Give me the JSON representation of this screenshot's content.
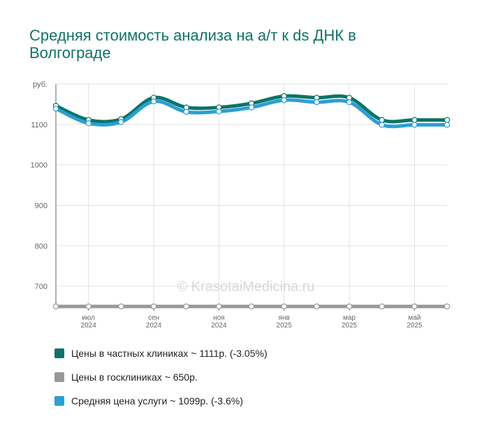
{
  "chart_data": {
    "type": "line",
    "title": "Средняя стоимость анализа на а/т к ds ДНК в Волгограде",
    "ylabel": "руб.",
    "ylim": [
      650,
      1200
    ],
    "yticks": [
      700,
      800,
      900,
      1000,
      1100
    ],
    "x": [
      "2024-05",
      "2024-06",
      "2024-07",
      "2024-08",
      "2024-09",
      "2024-10",
      "2024-11",
      "2024-12",
      "2025-01",
      "2025-02",
      "2025-03",
      "2025-04",
      "2025-05"
    ],
    "xticks": [
      {
        "x": "2024-06",
        "label": "июл",
        "year": "2024"
      },
      {
        "x": "2024-08",
        "label": "сен",
        "year": "2024"
      },
      {
        "x": "2024-10",
        "label": "ноя",
        "year": "2024"
      },
      {
        "x": "2024-12",
        "label": "янв",
        "year": "2025"
      },
      {
        "x": "2025-02",
        "label": "мар",
        "year": "2025"
      },
      {
        "x": "2025-04",
        "label": "май",
        "year": "2025"
      }
    ],
    "series": [
      {
        "name": "Цены в частных клиниках",
        "color": "#0d7468",
        "values": [
          1146,
          1111,
          1113,
          1166,
          1142,
          1142,
          1152,
          1170,
          1166,
          1166,
          1111,
          1111,
          1111
        ]
      },
      {
        "name": "Цены в госклиниках",
        "color": "#999999",
        "values": [
          650,
          650,
          650,
          650,
          650,
          650,
          650,
          650,
          650,
          650,
          650,
          650,
          650
        ]
      },
      {
        "name": "Средняя цена услуги",
        "color": "#2a9fd8",
        "values": [
          1139,
          1103,
          1106,
          1157,
          1131,
          1132,
          1142,
          1160,
          1155,
          1155,
          1099,
          1099,
          1099
        ]
      }
    ],
    "grid": true,
    "legend": "bottom"
  },
  "watermark": "© KrasotaiMedicina.ru",
  "legend_items": [
    {
      "label": "Цены в частных клиниках ~ 1111р. (-3.05%)",
      "color": "#0d7468"
    },
    {
      "label": "Цены в госклиниках ~ 650р.",
      "color": "#999999"
    },
    {
      "label": "Средняя цена услуги ~ 1099р. (-3.6%)",
      "color": "#2a9fd8"
    }
  ]
}
